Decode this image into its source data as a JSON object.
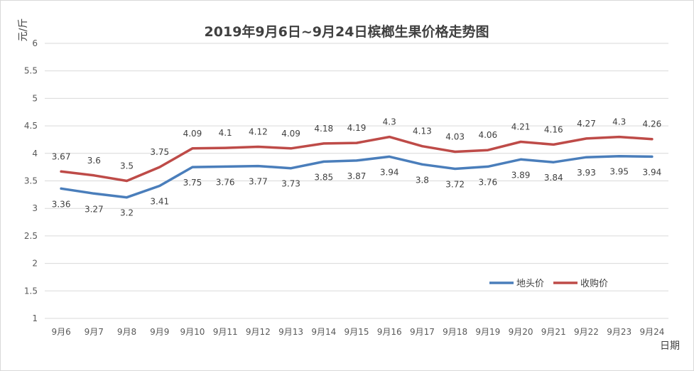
{
  "chart_data": {
    "type": "line",
    "title": "2019年9月6日~9月24日槟榔生果价格走势图",
    "xlabel": "日期",
    "ylabel": "元/斤",
    "ylim": [
      1,
      6
    ],
    "yticks": [
      "1",
      "1.5",
      "2",
      "2.5",
      "3",
      "3.5",
      "4",
      "4.5",
      "5",
      "5.5",
      "6"
    ],
    "grid": true,
    "legend_position": "bottom-right",
    "categories": [
      "9月6",
      "9月7",
      "9月8",
      "9月9",
      "9月10",
      "9月11",
      "9月12",
      "9月13",
      "9月14",
      "9月15",
      "9月16",
      "9月17",
      "9月18",
      "9月19",
      "9月20",
      "9月21",
      "9月22",
      "9月23",
      "9月24"
    ],
    "series": [
      {
        "name": "地头价",
        "color": "#4a7ebb",
        "label_position": "below",
        "values": [
          3.36,
          3.27,
          3.2,
          3.41,
          3.75,
          3.76,
          3.77,
          3.73,
          3.85,
          3.87,
          3.94,
          3.8,
          3.72,
          3.76,
          3.89,
          3.84,
          3.93,
          3.95,
          3.94
        ]
      },
      {
        "name": "收购价",
        "color": "#be4b48",
        "label_position": "above",
        "values": [
          3.67,
          3.6,
          3.5,
          3.75,
          4.09,
          4.1,
          4.12,
          4.09,
          4.18,
          4.19,
          4.3,
          4.13,
          4.03,
          4.06,
          4.21,
          4.16,
          4.27,
          4.3,
          4.26
        ]
      }
    ]
  }
}
